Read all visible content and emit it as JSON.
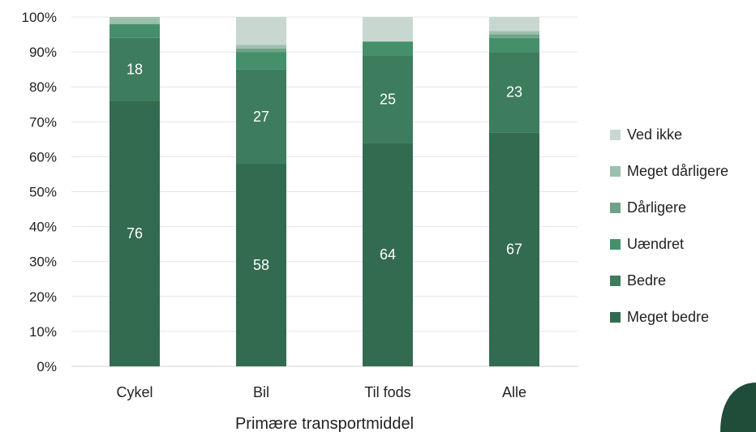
{
  "chart_data": {
    "type": "bar",
    "stacked": true,
    "percent_stacked": true,
    "categories": [
      "Cykel",
      "Bil",
      "Til fods",
      "Alle"
    ],
    "series": [
      {
        "name": "Meget bedre",
        "values": [
          76,
          58,
          64,
          67
        ],
        "color": "#336b51",
        "labels": [
          "76",
          "58",
          "64",
          "67"
        ]
      },
      {
        "name": "Bedre",
        "values": [
          18,
          27,
          25,
          23
        ],
        "color": "#3d7d5e",
        "labels": [
          "18",
          "27",
          "25",
          "23"
        ]
      },
      {
        "name": "Uændret",
        "values": [
          4,
          5,
          4,
          4
        ],
        "color": "#45906b",
        "labels": [
          "",
          "",
          "",
          ""
        ]
      },
      {
        "name": "Dårligere",
        "values": [
          0,
          1,
          0,
          1
        ],
        "color": "#6fa389",
        "labels": [
          "",
          "",
          "",
          ""
        ]
      },
      {
        "name": "Meget dårligere",
        "values": [
          2,
          1,
          0,
          1
        ],
        "color": "#9cbfae",
        "labels": [
          "",
          "",
          "",
          ""
        ]
      },
      {
        "name": "Ved ikke",
        "values": [
          0,
          8,
          7,
          4
        ],
        "color": "#c8d8d0",
        "labels": [
          "",
          "",
          "",
          ""
        ]
      }
    ],
    "y_ticks": [
      "0%",
      "10%",
      "20%",
      "30%",
      "40%",
      "50%",
      "60%",
      "70%",
      "80%",
      "90%",
      "100%"
    ],
    "ylim": [
      0,
      100
    ],
    "xlabel": "Primære transportmiddel",
    "ylabel": "",
    "title": "",
    "legend_placement": "right",
    "grid": true
  },
  "corner_shape_color": "#1f4d3a"
}
